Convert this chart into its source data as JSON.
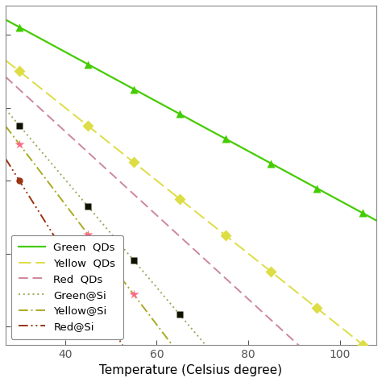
{
  "xlabel": "Temperature (Celsius degree)",
  "xlim": [
    27,
    108
  ],
  "ylim": [
    0.15,
    1.08
  ],
  "xticks": [
    40,
    60,
    80,
    100
  ],
  "series": [
    {
      "name": "Green  QDs",
      "line_color": "#44cc00",
      "linestyle": "solid",
      "linewidth": 1.6,
      "marker": "^",
      "markersize": 7,
      "marker_color": "#44cc00",
      "marker_edge": "none",
      "slope": -0.0068,
      "intercept": 1.225,
      "marker_temps": [
        30,
        45,
        55,
        65,
        75,
        85,
        95,
        105
      ]
    },
    {
      "name": "Yellow  QDs",
      "line_color": "#dddd44",
      "linestyle": "dashed_long",
      "linewidth": 1.4,
      "marker": "D",
      "markersize": 7,
      "marker_color": "#dddd44",
      "marker_edge": "none",
      "slope": -0.01,
      "intercept": 1.2,
      "marker_temps": [
        30,
        45,
        55,
        65,
        75,
        85,
        95,
        105
      ]
    },
    {
      "name": "Red  QDs",
      "line_color": "#cc8899",
      "linestyle": "dashed",
      "linewidth": 1.4,
      "marker": null,
      "markersize": 0,
      "marker_color": "#cc8899",
      "marker_edge": "none",
      "slope": -0.0115,
      "intercept": 1.195,
      "marker_temps": []
    },
    {
      "name": "Green@Si",
      "line_color": "#99aa55",
      "linestyle": "dotted",
      "linewidth": 1.4,
      "marker": "s",
      "markersize": 6,
      "marker_color": "#111100",
      "marker_edge": "none",
      "slope": -0.0148,
      "intercept": 1.195,
      "marker_temps": [
        30,
        45,
        55,
        65,
        75,
        85,
        95,
        105
      ]
    },
    {
      "name": "Yellow@Si",
      "line_color": "#aaaa22",
      "linestyle": "dashdot",
      "linewidth": 1.4,
      "marker": "*",
      "markersize": 9,
      "marker_color": "#ff6688",
      "marker_edge": "none",
      "slope": -0.0165,
      "intercept": 1.195,
      "marker_temps": [
        30,
        45,
        55,
        65,
        75,
        85,
        95,
        105
      ]
    },
    {
      "name": "Red@Si",
      "line_color": "#993311",
      "linestyle": "dashdotdot",
      "linewidth": 1.4,
      "marker": "o",
      "markersize": 6,
      "marker_color": "#993311",
      "marker_edge": "none",
      "slope": -0.02,
      "intercept": 1.2,
      "marker_temps": [
        30,
        45,
        55,
        65,
        75,
        85,
        95
      ]
    }
  ],
  "legend_loc": "lower left",
  "legend_fontsize": 9.5,
  "background_color": "#ffffff"
}
